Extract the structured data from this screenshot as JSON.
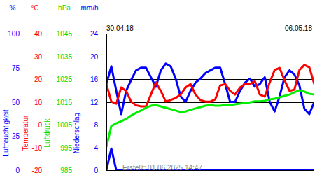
{
  "chart_data": {
    "type": "line",
    "categories": [
      "30.04.18",
      null,
      null,
      null,
      null,
      null,
      null,
      null,
      null,
      null,
      null,
      null,
      null,
      null,
      null,
      null,
      null,
      null,
      null,
      null,
      null,
      null,
      null,
      null,
      null,
      null,
      null,
      null,
      null,
      null,
      null,
      null,
      null,
      null,
      null,
      null,
      null,
      null,
      null,
      null,
      null,
      null,
      "06.05.18"
    ],
    "axes": [
      {
        "unit": "%",
        "label": "Luftfeuchtigkeit",
        "color": "#0000ff",
        "ylim": [
          0,
          100
        ],
        "yticks": [
          0,
          25,
          50,
          75,
          100
        ]
      },
      {
        "unit": "°C",
        "label": "Temperatur",
        "color": "#ff0000",
        "ylim": [
          -20,
          40
        ],
        "yticks": [
          -20,
          -10,
          0,
          10,
          20,
          30,
          40
        ]
      },
      {
        "unit": "hPa",
        "label": "Luftdruck",
        "color": "#00dd00",
        "ylim": [
          985,
          1045
        ],
        "yticks": [
          985,
          995,
          1005,
          1015,
          1025,
          1035,
          1045
        ]
      },
      {
        "unit": "mm/h",
        "label": "Niederschlag",
        "color": "#0000ff",
        "ylim": [
          0,
          24
        ],
        "yticks": [
          0,
          4,
          8,
          12,
          16,
          20,
          24
        ]
      }
    ],
    "series": [
      {
        "axis": 0,
        "color": "#0000ff",
        "values": [
          63,
          76,
          58,
          41,
          58,
          66,
          73,
          75,
          75,
          68,
          61,
          73,
          78,
          76,
          67,
          54,
          50,
          58,
          64,
          67,
          71,
          73,
          75,
          75,
          63,
          50,
          50,
          58,
          64,
          67,
          61,
          63,
          68,
          50,
          43,
          54,
          68,
          73,
          70,
          62,
          45,
          41,
          50
        ]
      },
      {
        "axis": 1,
        "color": "#ff0000",
        "values": [
          17.8,
          10.1,
          9.2,
          16.3,
          14.8,
          10.1,
          8.5,
          8.0,
          8.0,
          13.2,
          18.5,
          14.8,
          10.1,
          10.8,
          11.7,
          13.2,
          16.3,
          17.8,
          13.2,
          10.8,
          10.1,
          10.1,
          11.1,
          17.2,
          17.8,
          14.8,
          13.2,
          16.3,
          17.8,
          17.8,
          19.1,
          13.2,
          12.3,
          18.5,
          24.0,
          24.9,
          19.4,
          14.8,
          15.4,
          24.0,
          26.2,
          25.2,
          17.8
        ]
      },
      {
        "axis": 2,
        "color": "#00ee00",
        "values": [
          995.2,
          1004.4,
          1005.6,
          1006.5,
          1007.5,
          1009.0,
          1010.2,
          1011.2,
          1012.4,
          1013.3,
          1013.6,
          1013.0,
          1012.4,
          1011.8,
          1011.2,
          1010.5,
          1010.8,
          1011.5,
          1012.1,
          1012.7,
          1013.3,
          1013.6,
          1013.3,
          1013.3,
          1013.6,
          1013.6,
          1013.9,
          1014.2,
          1014.5,
          1014.8,
          1015.2,
          1015.2,
          1015.5,
          1016.1,
          1016.4,
          1017.0,
          1017.6,
          1018.2,
          1019.2,
          1020.1,
          1019.5,
          1018.5,
          1018.2
        ]
      },
      {
        "axis": 3,
        "color": "#0000ff",
        "values": [
          0,
          3.8,
          0,
          0,
          0,
          0,
          0,
          0,
          0,
          0,
          0,
          0,
          0,
          0,
          0,
          0,
          0,
          0,
          0,
          0,
          0,
          0,
          0,
          0,
          0,
          0,
          0,
          0,
          0,
          0,
          0,
          0,
          0,
          0,
          0,
          0,
          0,
          0,
          0,
          0,
          0,
          0,
          0
        ]
      }
    ],
    "grid": true,
    "footer": "Erstellt: 01.06.2025 14:47"
  }
}
